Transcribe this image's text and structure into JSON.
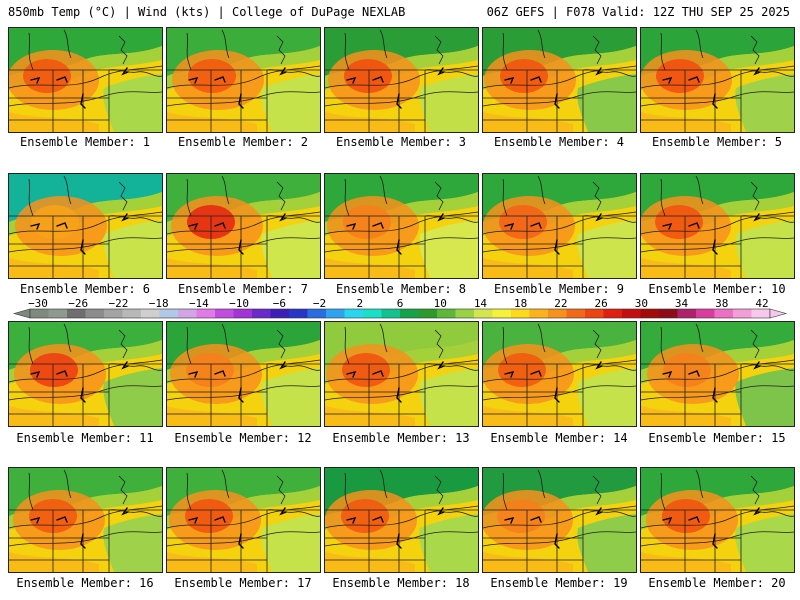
{
  "header": {
    "left": "850mb Temp (°C) | Wind (kts) | College of DuPage NEXLAB",
    "right": "06Z GEFS | F078 Valid: 12Z THU SEP 25 2025"
  },
  "panels": [
    {
      "caption": "Ensemble Member: 1",
      "north_color": "#2fa83a",
      "hot_color": "#f2560f",
      "east_color": "#a9d94a"
    },
    {
      "caption": "Ensemble Member: 2",
      "north_color": "#3aad3b",
      "hot_color": "#f35a10",
      "east_color": "#c6e24a"
    },
    {
      "caption": "Ensemble Member: 3",
      "north_color": "#2a9d36",
      "hot_color": "#f2500f",
      "east_color": "#c2df47"
    },
    {
      "caption": "Ensemble Member: 4",
      "north_color": "#2a9d36",
      "hot_color": "#f35510",
      "east_color": "#88c94a"
    },
    {
      "caption": "Ensemble Member: 5",
      "north_color": "#2ba43a",
      "hot_color": "#f2500f",
      "east_color": "#9fd24a"
    },
    {
      "caption": "Ensemble Member: 6",
      "north_color": "#13b39a",
      "hot_color": "#f7a21a",
      "east_color": "#c9e34b"
    },
    {
      "caption": "Ensemble Member: 7",
      "north_color": "#3fb03c",
      "hot_color": "#e52a12",
      "east_color": "#cfe64c"
    },
    {
      "caption": "Ensemble Member: 8",
      "north_color": "#2ea83a",
      "hot_color": "#f6801b",
      "east_color": "#d6e84e"
    },
    {
      "caption": "Ensemble Member: 9",
      "north_color": "#2ea83a",
      "hot_color": "#f36317",
      "east_color": "#cde44c"
    },
    {
      "caption": "Ensemble Member: 10",
      "north_color": "#2ea83a",
      "hot_color": "#f25410",
      "east_color": "#c6e24a"
    },
    {
      "caption": "Ensemble Member: 11",
      "north_color": "#3cb03c",
      "hot_color": "#ee3f12",
      "east_color": "#8fcc4a"
    },
    {
      "caption": "Ensemble Member: 12",
      "north_color": "#2ba43a",
      "hot_color": "#f6801b",
      "east_color": "#c6e24a"
    },
    {
      "caption": "Ensemble Member: 13",
      "north_color": "#8fcb3c",
      "hot_color": "#f25410",
      "east_color": "#c6e24a"
    },
    {
      "caption": "Ensemble Member: 14",
      "north_color": "#4ab23f",
      "hot_color": "#f25a10",
      "east_color": "#c6e24a"
    },
    {
      "caption": "Ensemble Member: 15",
      "north_color": "#34ab3b",
      "hot_color": "#f6801b",
      "east_color": "#7fc44a"
    },
    {
      "caption": "Ensemble Member: 16",
      "north_color": "#3fb03c",
      "hot_color": "#f35a10",
      "east_color": "#9fd24a"
    },
    {
      "caption": "Ensemble Member: 17",
      "north_color": "#3fb03c",
      "hot_color": "#f25410",
      "east_color": "#c6e24a"
    },
    {
      "caption": "Ensemble Member: 18",
      "north_color": "#1a9a40",
      "hot_color": "#f35a10",
      "east_color": "#a9d94a"
    },
    {
      "caption": "Ensemble Member: 19",
      "north_color": "#229a40",
      "hot_color": "#f6801b",
      "east_color": "#8fcc4a"
    },
    {
      "caption": "Ensemble Member: 20",
      "north_color": "#2ea83a",
      "hot_color": "#f25410",
      "east_color": "#a9d94a"
    }
  ],
  "colorbar": {
    "labels": [
      "−30",
      "−26",
      "−22",
      "−18",
      "−14",
      "−10",
      "−6",
      "−2",
      "2",
      "6",
      "10",
      "14",
      "18",
      "22",
      "26",
      "30",
      "34",
      "38",
      "42"
    ],
    "colors": [
      "#7d8a7d",
      "#8f9a8f",
      "#6e6e6e",
      "#8c8c8c",
      "#a3a3a3",
      "#b8b8b8",
      "#cfcfcf",
      "#b3c7e6",
      "#d2a6e6",
      "#e07ae6",
      "#c14ce0",
      "#a233d6",
      "#6b2bc9",
      "#3d1fb8",
      "#2836c7",
      "#2a6de0",
      "#2ea3ef",
      "#29d6ef",
      "#1ae0c8",
      "#13c28e",
      "#16a24a",
      "#2a9b2a",
      "#5db83a",
      "#9ad246",
      "#d4e64e",
      "#f4f23a",
      "#ffd91a",
      "#fcb21a",
      "#f8901c",
      "#f26a17",
      "#ec4512",
      "#df1f10",
      "#c40f0f",
      "#a30a0a",
      "#8c0c1a",
      "#b0216b",
      "#d83d9e",
      "#ec6fc2",
      "#f49ed8",
      "#f8c8ec"
    ]
  }
}
